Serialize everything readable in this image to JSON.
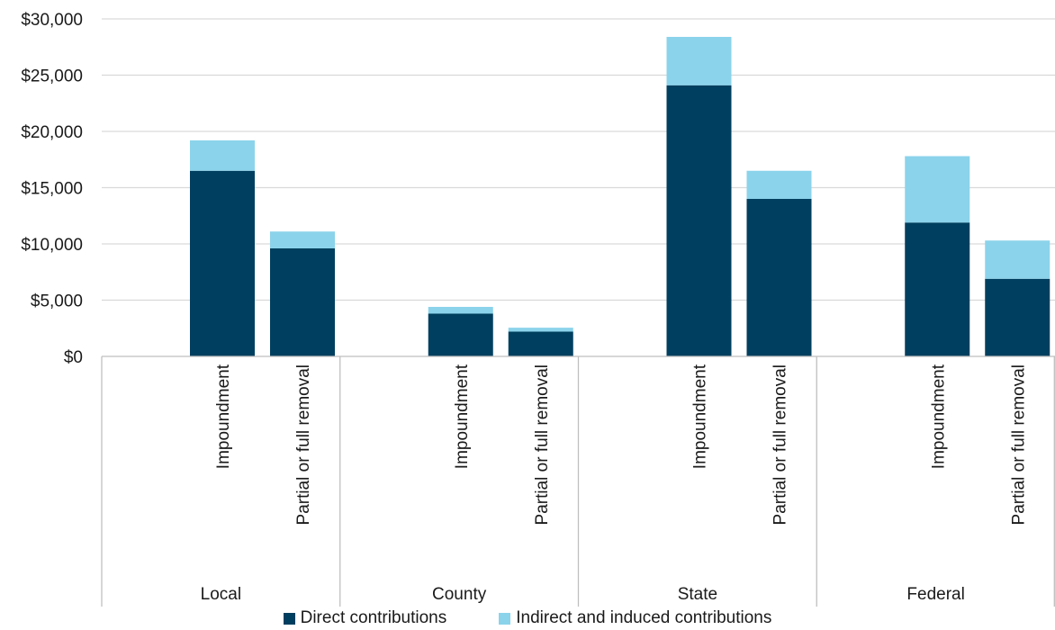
{
  "chart_data": {
    "type": "bar",
    "stacked": true,
    "groups": [
      "Local",
      "County",
      "State",
      "Federal"
    ],
    "categories": [
      "Impoundment",
      "Partial or full removal"
    ],
    "series": [
      {
        "name": "Direct contributions",
        "color": "#003f5f",
        "values": [
          [
            16500,
            9600
          ],
          [
            3800,
            2200
          ],
          [
            24100,
            14000
          ],
          [
            11900,
            6900
          ]
        ]
      },
      {
        "name": "Indirect and induced contributions",
        "color": "#8bd3eb",
        "values": [
          [
            2700,
            1500
          ],
          [
            600,
            350
          ],
          [
            4300,
            2500
          ],
          [
            5900,
            3400
          ]
        ]
      }
    ],
    "y_ticks": [
      "$0",
      "$5,000",
      "$10,000",
      "$15,000",
      "$20,000",
      "$25,000",
      "$30,000"
    ],
    "ylim": [
      0,
      30000
    ],
    "xlabel": "",
    "ylabel": "",
    "title": "",
    "grid": true,
    "legend_position": "bottom"
  }
}
